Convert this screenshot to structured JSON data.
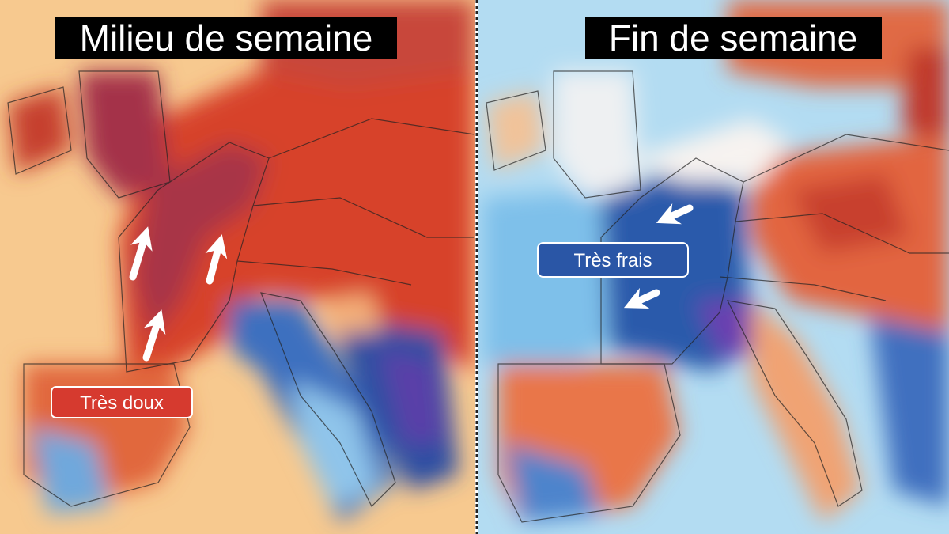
{
  "panels": [
    {
      "title": "Milieu de semaine",
      "label": "Très doux"
    },
    {
      "title": "Fin de semaine",
      "label": "Très frais"
    }
  ]
}
